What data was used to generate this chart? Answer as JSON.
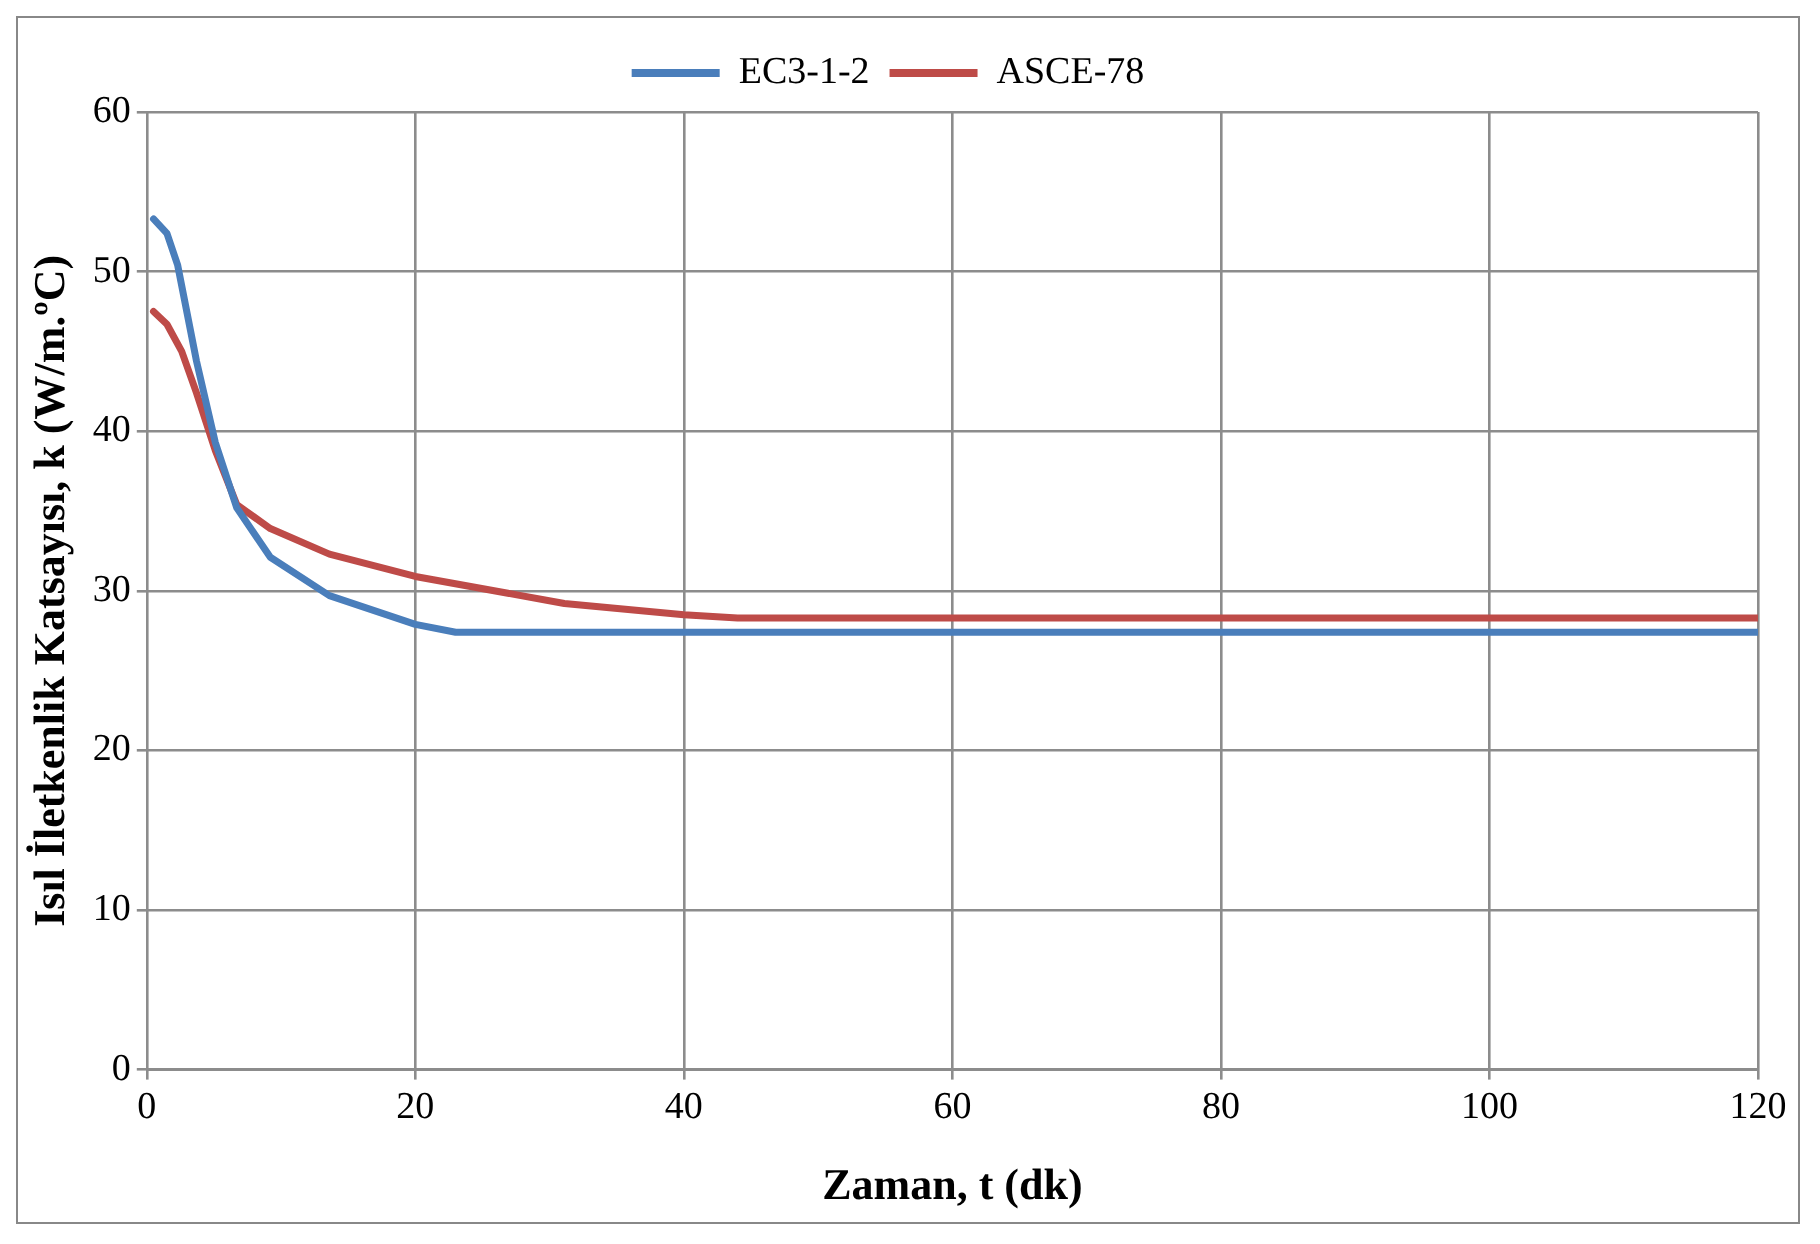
{
  "chart_data": {
    "type": "line",
    "xlabel": "Zaman, t (dk)",
    "ylabel": "Isıl İletkenlik Katsayısı, k (W/m.ºC)",
    "xlim": [
      0,
      120
    ],
    "xticks": [
      0,
      20,
      40,
      60,
      80,
      100,
      120
    ],
    "ylim": [
      0,
      60
    ],
    "yticks": [
      0,
      10,
      20,
      30,
      40,
      50,
      60
    ],
    "grid": true,
    "legend": "top",
    "marker": "none",
    "line_style": "solid",
    "series": [
      {
        "name": "EC3-1-2",
        "color": "#4a7ebb",
        "x": [
          0.5,
          1.5,
          2.3,
          3.7,
          5.1,
          6.7,
          9.2,
          13.6,
          20,
          23,
          120
        ],
        "values": [
          53.3,
          52.4,
          50.4,
          44.4,
          39.3,
          35.2,
          32.1,
          29.7,
          27.9,
          27.4,
          27.4
        ]
      },
      {
        "name": "ASCE-78",
        "color": "#be4b48",
        "x": [
          0.5,
          1.5,
          2.6,
          3.7,
          5.1,
          6.7,
          9.2,
          13.6,
          20,
          31.1,
          40,
          44,
          120
        ],
        "values": [
          47.5,
          46.7,
          45,
          42.4,
          38.8,
          35.4,
          33.9,
          32.3,
          30.9,
          29.2,
          28.5,
          28.3,
          28.3
        ]
      }
    ]
  }
}
